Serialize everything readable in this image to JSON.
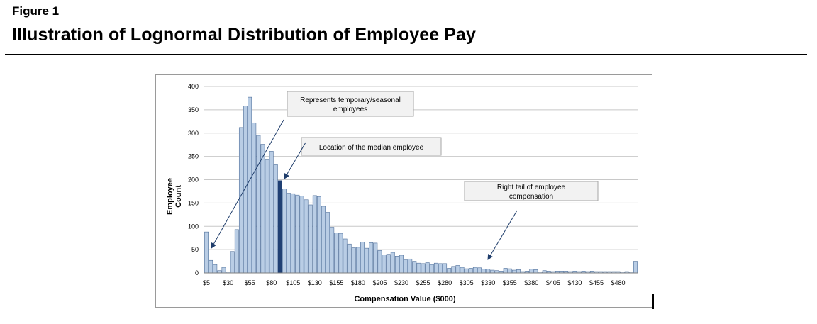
{
  "figure": {
    "label": "Figure 1",
    "title": "Illustration of Lognormal Distribution of Employee Pay"
  },
  "colors": {
    "bar_fill": "#b9cde5",
    "bar_stroke": "#4f6f9a",
    "highlight_fill": "#1f3f73",
    "grid": "#c8c8c8",
    "arrow": "#1f3d6b",
    "annotation_fill": "#f2f2f2",
    "annotation_stroke": "#a6a6a6"
  },
  "chart_data": {
    "type": "bar",
    "title": "",
    "xlabel": "Compensation Value ($000)",
    "ylabel_lines": [
      "Employee",
      "Count"
    ],
    "ylim": [
      0,
      400
    ],
    "yticks": [
      0,
      50,
      100,
      150,
      200,
      250,
      300,
      350,
      400
    ],
    "bin_width": 5,
    "first_bin": 5,
    "xtick_labels": [
      "$5",
      "$30",
      "$55",
      "$80",
      "$105",
      "$130",
      "$155",
      "$180",
      "$205",
      "$230",
      "$255",
      "$280",
      "$305",
      "$330",
      "$355",
      "$380",
      "$405",
      "$430",
      "$455",
      "$480"
    ],
    "xtick_values": [
      5,
      30,
      55,
      80,
      105,
      130,
      155,
      180,
      205,
      230,
      255,
      280,
      305,
      330,
      355,
      380,
      405,
      430,
      455,
      480
    ],
    "highlight_bin": 90,
    "x": [
      5,
      10,
      15,
      20,
      25,
      30,
      35,
      40,
      45,
      50,
      55,
      60,
      65,
      70,
      75,
      80,
      85,
      90,
      95,
      100,
      105,
      110,
      115,
      120,
      125,
      130,
      135,
      140,
      145,
      150,
      155,
      160,
      165,
      170,
      175,
      180,
      185,
      190,
      195,
      200,
      205,
      210,
      215,
      220,
      225,
      230,
      235,
      240,
      245,
      250,
      255,
      260,
      265,
      270,
      275,
      280,
      285,
      290,
      295,
      300,
      305,
      310,
      315,
      320,
      325,
      330,
      335,
      340,
      345,
      350,
      355,
      360,
      365,
      370,
      375,
      380,
      385,
      390,
      395,
      400,
      405,
      410,
      415,
      420,
      425,
      430,
      435,
      440,
      445,
      450,
      455,
      460,
      465,
      470,
      475,
      480,
      485,
      490,
      495,
      500
    ],
    "values": [
      88,
      27,
      18,
      5,
      12,
      2,
      46,
      93,
      312,
      358,
      377,
      322,
      295,
      276,
      244,
      261,
      232,
      198,
      180,
      171,
      170,
      167,
      165,
      157,
      146,
      166,
      164,
      143,
      130,
      98,
      86,
      85,
      73,
      62,
      54,
      55,
      66,
      53,
      65,
      64,
      48,
      39,
      40,
      44,
      36,
      38,
      28,
      30,
      25,
      21,
      20,
      22,
      18,
      21,
      20,
      20,
      10,
      14,
      16,
      12,
      9,
      10,
      12,
      11,
      8,
      8,
      6,
      5,
      4,
      10,
      9,
      6,
      7,
      3,
      4,
      8,
      7,
      2,
      5,
      4,
      3,
      4,
      4,
      4,
      3,
      4,
      3,
      4,
      3,
      4,
      3,
      3,
      3,
      3,
      3,
      3,
      2,
      3,
      2,
      25
    ],
    "annotations": [
      {
        "lines": [
          "Represents temporary/seasonal",
          "employees"
        ]
      },
      {
        "lines": [
          "Location of the median employee"
        ]
      },
      {
        "lines": [
          "Right tail of employee",
          "compensation"
        ]
      }
    ]
  }
}
